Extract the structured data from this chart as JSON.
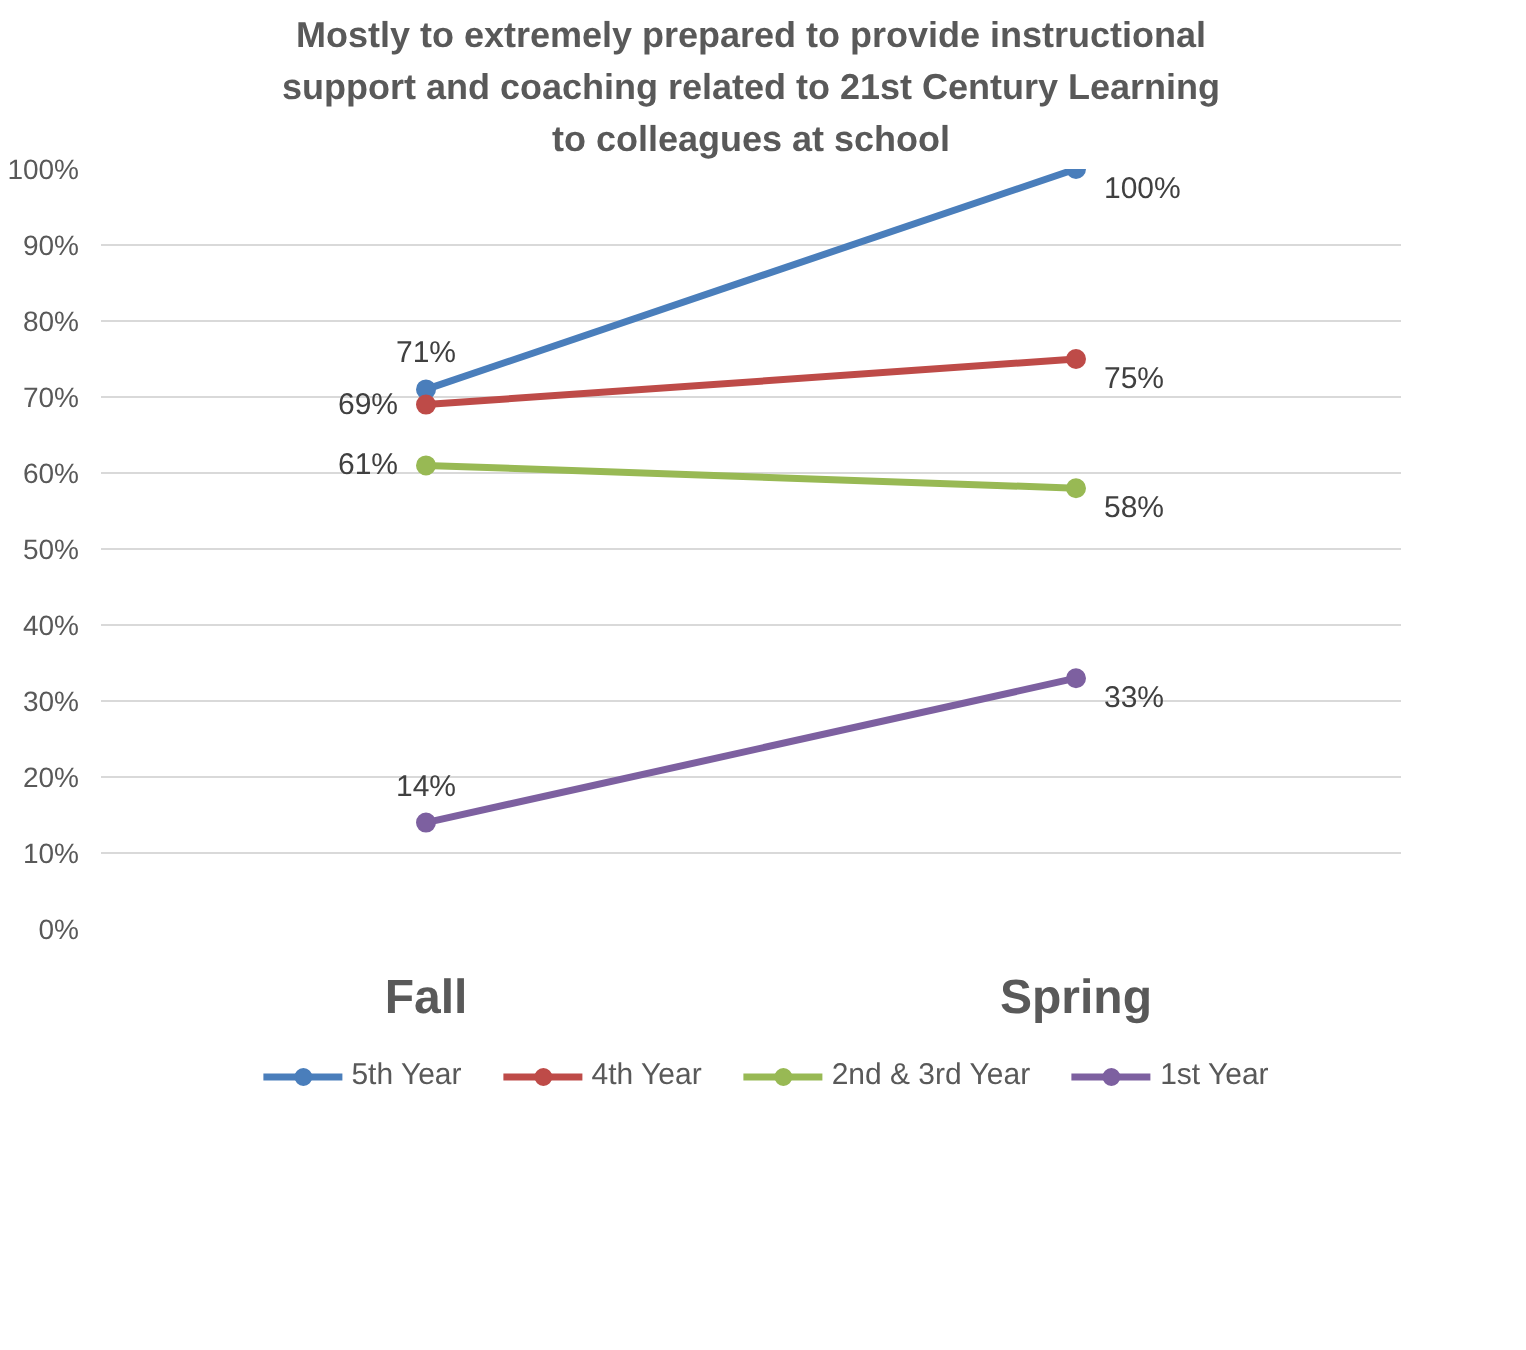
{
  "chart_data": {
    "type": "line",
    "title": "Mostly to extremely prepared to provide instructional support and coaching related to 21st Century Learning to colleagues at school",
    "categories": [
      "Fall",
      "Spring"
    ],
    "series": [
      {
        "name": "5th Year",
        "color": "#4a7ebb",
        "values": [
          71,
          100
        ],
        "value_labels": [
          "71%",
          "100%"
        ]
      },
      {
        "name": "4th Year",
        "color": "#be4b48",
        "values": [
          69,
          75
        ],
        "value_labels": [
          "69%",
          "75%"
        ]
      },
      {
        "name": "2nd & 3rd Year",
        "color": "#98b954",
        "values": [
          61,
          58
        ],
        "value_labels": [
          "61%",
          "58%"
        ]
      },
      {
        "name": "1st Year",
        "color": "#7d60a0",
        "values": [
          14,
          33
        ],
        "value_labels": [
          "14%",
          "33%"
        ]
      }
    ],
    "ylim": [
      0,
      100
    ],
    "yticks": [
      {
        "value": 0,
        "label": "0%"
      },
      {
        "value": 10,
        "label": "10%"
      },
      {
        "value": 20,
        "label": "20%"
      },
      {
        "value": 30,
        "label": "30%"
      },
      {
        "value": 40,
        "label": "40%"
      },
      {
        "value": 50,
        "label": "50%"
      },
      {
        "value": 60,
        "label": "60%"
      },
      {
        "value": 70,
        "label": "70%"
      },
      {
        "value": 80,
        "label": "80%"
      },
      {
        "value": 90,
        "label": "90%"
      },
      {
        "value": 100,
        "label": "100%"
      }
    ],
    "data_labels": true,
    "grid": "y",
    "legend": "bottom",
    "marker": "circle",
    "line_style": "solid"
  }
}
